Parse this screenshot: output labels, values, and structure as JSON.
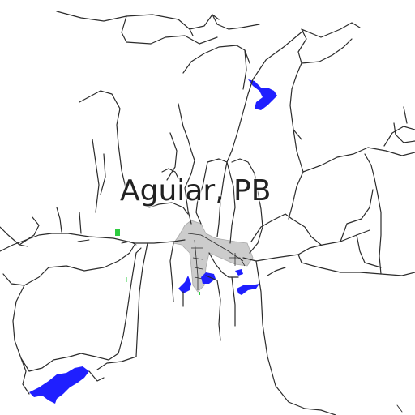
{
  "map": {
    "place_label": "Aguiar, PB",
    "colors": {
      "background": "#ffffff",
      "road": "#2b2b2b",
      "water": "#1f1fff",
      "urban_area": "#cccccc",
      "vegetation": "#2ecc40",
      "label": "#222222"
    },
    "features": {
      "roads": "road-network",
      "water": "reservoirs",
      "urban": "town-center",
      "vegetation": "green-patches"
    }
  }
}
